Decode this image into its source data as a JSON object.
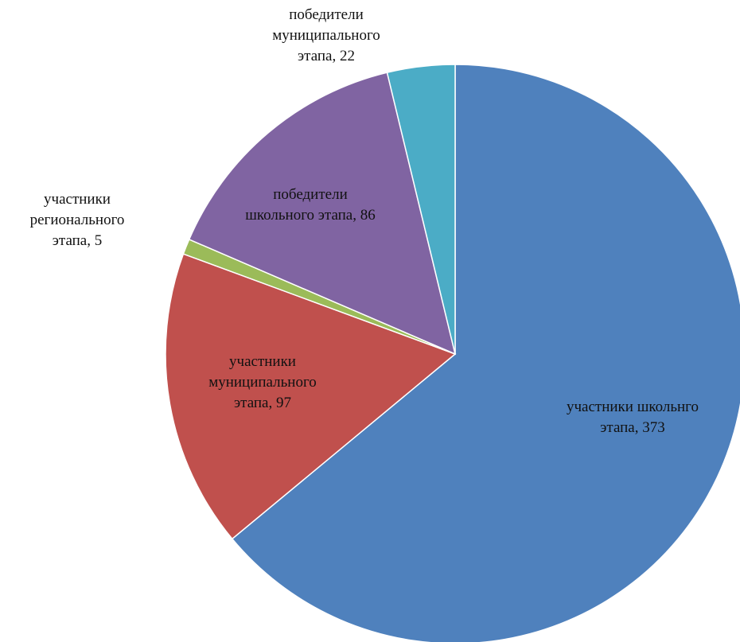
{
  "chart_data": {
    "type": "pie",
    "title": "",
    "start_angle_deg": 0,
    "direction": "clockwise",
    "legend": "none",
    "slices": [
      {
        "name": "участники школьнго этапа",
        "value": 373,
        "label_lines": [
          "участники школьнго",
          "этапа, 373"
        ],
        "color": "#4F81BD"
      },
      {
        "name": "участники муниципального этапа",
        "value": 97,
        "label_lines": [
          "участники",
          "муниципального",
          "этапа, 97"
        ],
        "color": "#C0504D"
      },
      {
        "name": "участники регионального этапа",
        "value": 5,
        "label_lines": [
          "участники",
          "регионального",
          "этапа, 5"
        ],
        "color": "#9BBB59"
      },
      {
        "name": "победители школьного этапа",
        "value": 86,
        "label_lines": [
          "победители",
          "школьного этапа, 86"
        ],
        "color": "#8064A2"
      },
      {
        "name": "победители муниципального этапа",
        "value": 22,
        "label_lines": [
          "победители",
          "муниципального",
          "этапа, 22"
        ],
        "color": "#4BACC6"
      }
    ]
  }
}
